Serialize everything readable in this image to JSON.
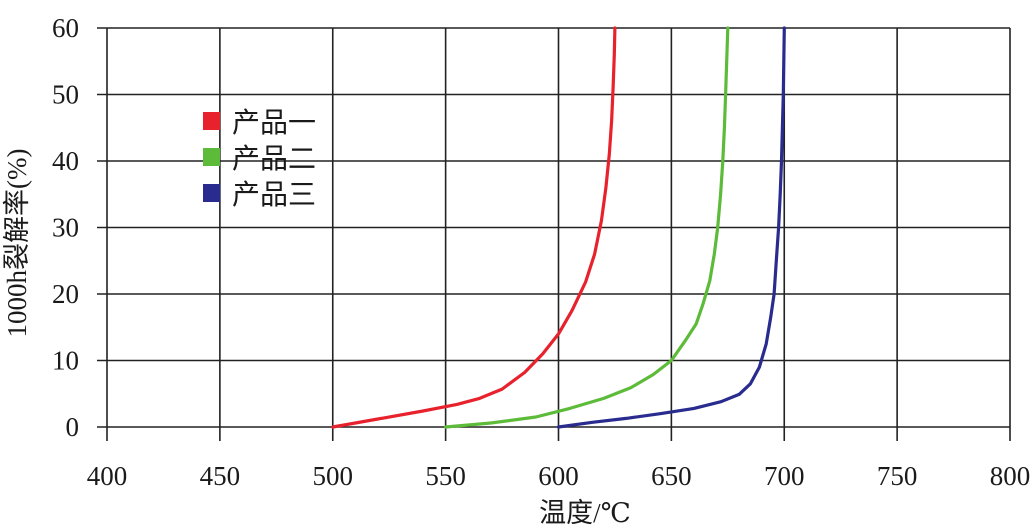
{
  "chart_data": {
    "type": "line",
    "xlabel": "温度/℃",
    "ylabel": "1000h裂解率(%)",
    "xlim": [
      400,
      800
    ],
    "ylim": [
      0,
      60
    ],
    "x_ticks": [
      "400",
      "450",
      "500",
      "550",
      "600",
      "650",
      "700",
      "750",
      "800"
    ],
    "y_ticks": [
      "0",
      "10",
      "20",
      "30",
      "40",
      "50",
      "60"
    ],
    "grid": true,
    "legend_position": "upper-left",
    "series": [
      {
        "name": "产品一",
        "color": "#e8222c",
        "points": [
          [
            500,
            0
          ],
          [
            520,
            1.2
          ],
          [
            540,
            2.4
          ],
          [
            555,
            3.4
          ],
          [
            565,
            4.3
          ],
          [
            575,
            5.7
          ],
          [
            585,
            8.2
          ],
          [
            593,
            11
          ],
          [
            600,
            14
          ],
          [
            606,
            17.5
          ],
          [
            612,
            21.8
          ],
          [
            616,
            26
          ],
          [
            619,
            31
          ],
          [
            621,
            36
          ],
          [
            622.5,
            41
          ],
          [
            623.5,
            46
          ],
          [
            624.2,
            51
          ],
          [
            624.7,
            56
          ],
          [
            625,
            60
          ]
        ]
      },
      {
        "name": "产品二",
        "color": "#5dbb3a",
        "points": [
          [
            550,
            0
          ],
          [
            570,
            0.6
          ],
          [
            590,
            1.5
          ],
          [
            605,
            2.8
          ],
          [
            620,
            4.3
          ],
          [
            632,
            5.9
          ],
          [
            642,
            7.9
          ],
          [
            650,
            10
          ],
          [
            656,
            12.9
          ],
          [
            661,
            15.5
          ],
          [
            664,
            18.5
          ],
          [
            667,
            22
          ],
          [
            669,
            26
          ],
          [
            670.5,
            30
          ],
          [
            671.8,
            35
          ],
          [
            672.8,
            40
          ],
          [
            673.5,
            45
          ],
          [
            674,
            50
          ],
          [
            674.5,
            55
          ],
          [
            675,
            60
          ]
        ]
      },
      {
        "name": "产品三",
        "color": "#2a2b8f",
        "points": [
          [
            600,
            0
          ],
          [
            615,
            0.7
          ],
          [
            630,
            1.3
          ],
          [
            645,
            2.0
          ],
          [
            660,
            2.8
          ],
          [
            672,
            3.8
          ],
          [
            680,
            4.9
          ],
          [
            685,
            6.5
          ],
          [
            689,
            9
          ],
          [
            692,
            12.5
          ],
          [
            694,
            16.5
          ],
          [
            695.5,
            20
          ],
          [
            696.5,
            25
          ],
          [
            697.5,
            30
          ],
          [
            698.2,
            35
          ],
          [
            698.8,
            40
          ],
          [
            699.2,
            45
          ],
          [
            699.6,
            50
          ],
          [
            699.8,
            55
          ],
          [
            700,
            60
          ]
        ]
      }
    ]
  }
}
